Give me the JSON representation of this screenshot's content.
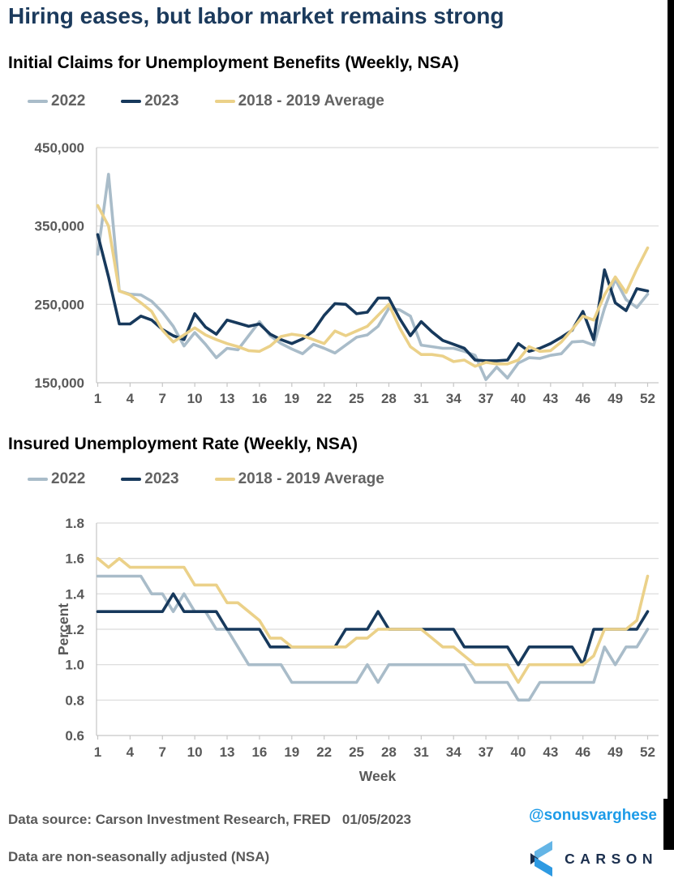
{
  "page_title": "Hiring eases, but labor market remains strong",
  "colors": {
    "title_navy": "#1b3a5c",
    "axis_text_gray": "#595959",
    "legend_text_gray": "#636363",
    "gridline": "#d9d9d9",
    "axis_line": "#c6c6c6",
    "series_2022": "#a9bcc9",
    "series_2023": "#17395c",
    "series_avg": "#ebd189",
    "handle_blue": "#1c9be8",
    "logo_navy": "#1b2f4e",
    "logo_blue_light": "#64b5e6",
    "logo_blue_mid": "#2e9ae2"
  },
  "footer": {
    "source_line": "Data source: Carson Investment Research, FRED   01/05/2023",
    "note_line": "Data are non-seasonally adjusted (NSA)",
    "handle": "@sonusvarghese",
    "logo_text": "CARSON"
  },
  "chart_data": [
    {
      "type": "line",
      "title": "Initial Claims for Unemployment Benefits (Weekly, NSA)",
      "xlabel": "",
      "ylabel": "",
      "x_start": 1,
      "x_end": 52,
      "ylim": [
        150000,
        450000
      ],
      "yticks": [
        150000,
        250000,
        350000,
        450000
      ],
      "ytick_labels": [
        "150,000",
        "250,000",
        "350,000",
        "450,000"
      ],
      "xticks": [
        1,
        4,
        7,
        10,
        13,
        16,
        19,
        22,
        25,
        28,
        31,
        34,
        37,
        40,
        43,
        46,
        49,
        52
      ],
      "grid": "horizontal",
      "legend_position": "top",
      "series": [
        {
          "name": "2022",
          "color": "#a9bcc9",
          "values": [
            314000,
            416000,
            267000,
            263000,
            262000,
            254000,
            240000,
            222000,
            197000,
            214000,
            199000,
            182000,
            194000,
            192000,
            210000,
            228000,
            210000,
            200000,
            193000,
            187000,
            199000,
            194000,
            188000,
            198000,
            208000,
            211000,
            222000,
            245000,
            243000,
            235000,
            198000,
            196000,
            194000,
            194000,
            190000,
            185000,
            154000,
            170000,
            156000,
            175000,
            182000,
            181000,
            185000,
            187000,
            202000,
            203000,
            198000,
            245000,
            282000,
            256000,
            246000,
            263000
          ]
        },
        {
          "name": "2023",
          "color": "#17395c",
          "values": [
            339000,
            285000,
            225000,
            225000,
            235000,
            230000,
            218000,
            210000,
            205000,
            238000,
            221000,
            212000,
            230000,
            226000,
            222000,
            225000,
            212000,
            205000,
            200000,
            206000,
            216000,
            236000,
            251000,
            250000,
            238000,
            240000,
            258000,
            258000,
            232000,
            210000,
            228000,
            215000,
            204000,
            199000,
            194000,
            179000,
            178000,
            178000,
            179000,
            200000,
            190000,
            194000,
            200000,
            208000,
            217000,
            241000,
            205000,
            294000,
            252000,
            242000,
            270000,
            267000
          ]
        },
        {
          "name": "2018 - 2019 Average",
          "color": "#ebd189",
          "values": [
            376000,
            350000,
            267000,
            262000,
            252000,
            241000,
            217000,
            202000,
            211000,
            220000,
            211000,
            205000,
            200000,
            196000,
            191000,
            190000,
            197000,
            209000,
            212000,
            210000,
            205000,
            200000,
            216000,
            210000,
            216000,
            222000,
            236000,
            250000,
            220000,
            196000,
            186000,
            186000,
            184000,
            177000,
            179000,
            171000,
            176000,
            174000,
            174000,
            179000,
            196000,
            190000,
            191000,
            202000,
            218000,
            235000,
            230000,
            262000,
            285000,
            265000,
            295000,
            322000
          ]
        }
      ]
    },
    {
      "type": "line",
      "title": "Insured Unemployment Rate (Weekly, NSA)",
      "xlabel": "Week",
      "ylabel": "Percent",
      "x_start": 1,
      "x_end": 52,
      "ylim": [
        0.6,
        1.8
      ],
      "yticks": [
        0.6,
        0.8,
        1.0,
        1.2,
        1.4,
        1.6,
        1.8
      ],
      "ytick_labels": [
        "0.6",
        "0.8",
        "1.0",
        "1.2",
        "1.4",
        "1.6",
        "1.8"
      ],
      "xticks": [
        1,
        4,
        7,
        10,
        13,
        16,
        19,
        22,
        25,
        28,
        31,
        34,
        37,
        40,
        43,
        46,
        49,
        52
      ],
      "grid": "horizontal",
      "legend_position": "top",
      "series": [
        {
          "name": "2022",
          "color": "#a9bcc9",
          "values": [
            1.5,
            1.5,
            1.5,
            1.5,
            1.5,
            1.4,
            1.4,
            1.3,
            1.4,
            1.3,
            1.3,
            1.2,
            1.2,
            1.1,
            1.0,
            1.0,
            1.0,
            1.0,
            0.9,
            0.9,
            0.9,
            0.9,
            0.9,
            0.9,
            0.9,
            1.0,
            0.9,
            1.0,
            1.0,
            1.0,
            1.0,
            1.0,
            1.0,
            1.0,
            1.0,
            0.9,
            0.9,
            0.9,
            0.9,
            0.8,
            0.8,
            0.9,
            0.9,
            0.9,
            0.9,
            0.9,
            0.9,
            1.1,
            1.0,
            1.1,
            1.1,
            1.2
          ]
        },
        {
          "name": "2023",
          "color": "#17395c",
          "values": [
            1.3,
            1.3,
            1.3,
            1.3,
            1.3,
            1.3,
            1.3,
            1.4,
            1.3,
            1.3,
            1.3,
            1.3,
            1.2,
            1.2,
            1.2,
            1.2,
            1.1,
            1.1,
            1.1,
            1.1,
            1.1,
            1.1,
            1.1,
            1.2,
            1.2,
            1.2,
            1.3,
            1.2,
            1.2,
            1.2,
            1.2,
            1.2,
            1.2,
            1.2,
            1.1,
            1.1,
            1.1,
            1.1,
            1.1,
            1.0,
            1.1,
            1.1,
            1.1,
            1.1,
            1.1,
            1.0,
            1.2,
            1.2,
            1.2,
            1.2,
            1.2,
            1.3
          ]
        },
        {
          "name": "2018 - 2019 Average",
          "color": "#ebd189",
          "values": [
            1.6,
            1.55,
            1.6,
            1.55,
            1.55,
            1.55,
            1.55,
            1.55,
            1.55,
            1.45,
            1.45,
            1.45,
            1.35,
            1.35,
            1.3,
            1.25,
            1.15,
            1.15,
            1.1,
            1.1,
            1.1,
            1.1,
            1.1,
            1.1,
            1.15,
            1.15,
            1.2,
            1.2,
            1.2,
            1.2,
            1.2,
            1.15,
            1.1,
            1.1,
            1.05,
            1.0,
            1.0,
            1.0,
            1.0,
            0.9,
            1.0,
            1.0,
            1.0,
            1.0,
            1.0,
            1.0,
            1.05,
            1.2,
            1.2,
            1.2,
            1.25,
            1.5
          ]
        }
      ]
    }
  ]
}
